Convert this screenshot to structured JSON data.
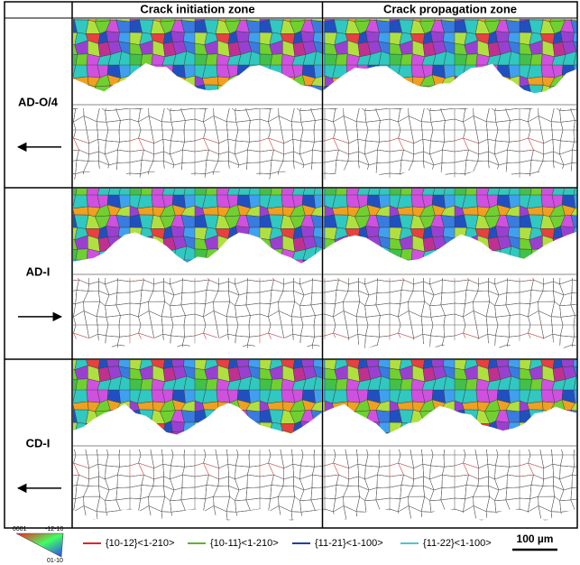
{
  "columns": [
    "Crack initiation zone",
    "Crack propagation zone"
  ],
  "rows": [
    {
      "label": "AD-O/4",
      "arrow": "left"
    },
    {
      "label": "AD-I",
      "arrow": "right"
    },
    {
      "label": "CD-I",
      "arrow": "left"
    }
  ],
  "ipf_key": {
    "top_left": "0001",
    "top_right": "-12-10",
    "bottom": "01-10"
  },
  "legend": [
    {
      "label": "{10-12}<1-210>",
      "color": "#e02424"
    },
    {
      "label": "{10-11}<1-210>",
      "color": "#5cb531"
    },
    {
      "label": "{11-21}<1-100>",
      "color": "#23409c"
    },
    {
      "label": "{11-22}<1-100>",
      "color": "#52c3d9"
    }
  ],
  "scale_bar": "100 µm"
}
